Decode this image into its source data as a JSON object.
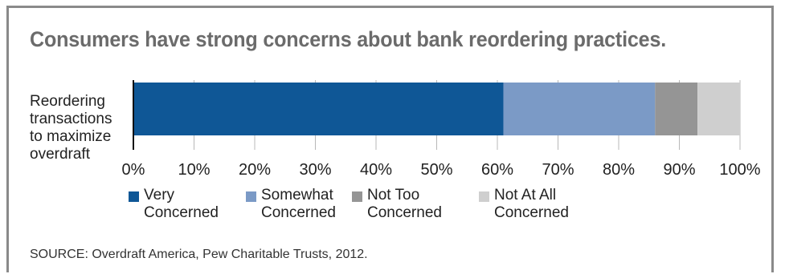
{
  "chart_data": {
    "type": "bar",
    "orientation": "horizontal",
    "stacked": true,
    "title": "Consumers have strong concerns about bank reordering practices.",
    "categories": [
      "Reordering transactions to maximize overdraft"
    ],
    "series": [
      {
        "name": "Very Concerned",
        "values": [
          61
        ],
        "color": "#0f5796"
      },
      {
        "name": "Somewhat Concerned",
        "values": [
          25
        ],
        "color": "#7b9ac6"
      },
      {
        "name": "Not Too Concerned",
        "values": [
          7
        ],
        "color": "#959595"
      },
      {
        "name": "Not At All Concerned",
        "values": [
          7
        ],
        "color": "#cfcfcf"
      }
    ],
    "xlim": [
      0,
      100
    ],
    "xticks": [
      "0%",
      "10%",
      "20%",
      "30%",
      "40%",
      "50%",
      "60%",
      "70%",
      "80%",
      "90%",
      "100%"
    ],
    "grid": true,
    "legend_position": "bottom",
    "source": "SOURCE: Overdraft America, Pew Charitable Trusts, 2012."
  }
}
